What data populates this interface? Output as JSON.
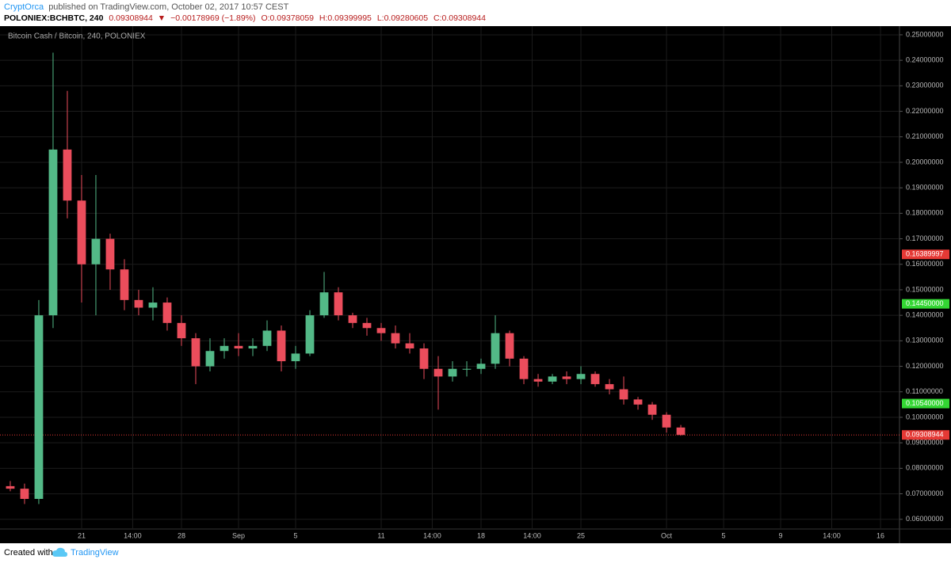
{
  "header": {
    "author": "CryptOrca",
    "published": "published on TradingView.com, October 02, 2017 10:57 CEST",
    "symbol": "POLONIEX:BCHBTC, 240",
    "last": "0.09308944",
    "arrow": "▼",
    "change": "−0.00178969 (−1.89%)",
    "open": "O:0.09378059",
    "high": "H:0.09399995",
    "low": "L:0.09280605",
    "close": "C:0.09308944"
  },
  "footer": {
    "created": "Created with",
    "brand": "TradingView"
  },
  "chart_data": {
    "type": "candlestick",
    "title": "Bitcoin Cash / Bitcoin, 240, POLONIEX",
    "up_color": "#53b987",
    "down_color": "#eb4d5c",
    "grid": true,
    "x": [
      16,
      17,
      18,
      19,
      20,
      21,
      22,
      23,
      24,
      25,
      26,
      27,
      28,
      29,
      30,
      31,
      32,
      33,
      34,
      35,
      36,
      37,
      38,
      39,
      40,
      41,
      42,
      43,
      44,
      45,
      46,
      47,
      48,
      49,
      50,
      51,
      52,
      53,
      54,
      55,
      56,
      57,
      58,
      59,
      60,
      61,
      62,
      63
    ],
    "open": [
      0.073,
      0.072,
      0.068,
      0.14,
      0.205,
      0.185,
      0.16,
      0.17,
      0.158,
      0.146,
      0.143,
      0.145,
      0.137,
      0.131,
      0.12,
      0.126,
      0.128,
      0.127,
      0.128,
      0.134,
      0.122,
      0.125,
      0.14,
      0.149,
      0.14,
      0.137,
      0.135,
      0.133,
      0.129,
      0.127,
      0.119,
      0.116,
      0.119,
      0.119,
      0.121,
      0.133,
      0.123,
      0.115,
      0.114,
      0.116,
      0.115,
      0.117,
      0.113,
      0.111,
      0.107,
      0.105,
      0.101,
      0.096
    ],
    "high": [
      0.075,
      0.074,
      0.146,
      0.243,
      0.228,
      0.195,
      0.195,
      0.172,
      0.162,
      0.15,
      0.151,
      0.147,
      0.14,
      0.133,
      0.131,
      0.131,
      0.133,
      0.131,
      0.138,
      0.136,
      0.128,
      0.142,
      0.157,
      0.151,
      0.141,
      0.139,
      0.137,
      0.136,
      0.133,
      0.129,
      0.124,
      0.122,
      0.122,
      0.123,
      0.14,
      0.134,
      0.124,
      0.117,
      0.117,
      0.118,
      0.12,
      0.118,
      0.115,
      0.116,
      0.108,
      0.106,
      0.102,
      0.097
    ],
    "low": [
      0.071,
      0.066,
      0.066,
      0.135,
      0.178,
      0.145,
      0.14,
      0.15,
      0.142,
      0.14,
      0.138,
      0.134,
      0.128,
      0.113,
      0.118,
      0.123,
      0.124,
      0.124,
      0.126,
      0.118,
      0.119,
      0.124,
      0.139,
      0.138,
      0.135,
      0.132,
      0.13,
      0.127,
      0.125,
      0.115,
      0.103,
      0.114,
      0.116,
      0.117,
      0.119,
      0.12,
      0.113,
      0.112,
      0.113,
      0.113,
      0.113,
      0.112,
      0.109,
      0.105,
      0.103,
      0.099,
      0.094,
      0.0928
    ],
    "close": [
      0.072,
      0.068,
      0.14,
      0.205,
      0.185,
      0.16,
      0.17,
      0.158,
      0.146,
      0.143,
      0.145,
      0.137,
      0.131,
      0.12,
      0.126,
      0.128,
      0.127,
      0.128,
      0.134,
      0.122,
      0.125,
      0.14,
      0.149,
      0.14,
      0.137,
      0.135,
      0.133,
      0.129,
      0.127,
      0.119,
      0.116,
      0.119,
      0.119,
      0.121,
      0.133,
      0.123,
      0.115,
      0.114,
      0.116,
      0.115,
      0.117,
      0.113,
      0.111,
      0.107,
      0.105,
      0.101,
      0.096,
      0.0931
    ],
    "xlim": [
      15.28,
      78.33
    ],
    "xticks": [
      {
        "value": 21,
        "label": "21"
      },
      {
        "value": 24.58,
        "label": "14:00"
      },
      {
        "value": 28,
        "label": "28"
      },
      {
        "value": 32,
        "label": "Sep"
      },
      {
        "value": 36,
        "label": "5"
      },
      {
        "value": 42,
        "label": "11"
      },
      {
        "value": 45.58,
        "label": "14:00"
      },
      {
        "value": 49,
        "label": "18"
      },
      {
        "value": 52.58,
        "label": "14:00"
      },
      {
        "value": 56,
        "label": "25"
      },
      {
        "value": 62,
        "label": "Oct"
      },
      {
        "value": 66,
        "label": "5"
      },
      {
        "value": 70,
        "label": "9"
      },
      {
        "value": 73.58,
        "label": "14:00"
      },
      {
        "value": 77,
        "label": "16"
      }
    ],
    "ylim": [
      0.0562,
      0.2534
    ],
    "yticks": [
      {
        "value": 0.06,
        "label": "0.06000000"
      },
      {
        "value": 0.07,
        "label": "0.07000000"
      },
      {
        "value": 0.08,
        "label": "0.08000000"
      },
      {
        "value": 0.09,
        "label": "0.09000000"
      },
      {
        "value": 0.1,
        "label": "0.10000000"
      },
      {
        "value": 0.11,
        "label": "0.11000000"
      },
      {
        "value": 0.12,
        "label": "0.12000000"
      },
      {
        "value": 0.13,
        "label": "0.13000000"
      },
      {
        "value": 0.14,
        "label": "0.14000000"
      },
      {
        "value": 0.15,
        "label": "0.15000000"
      },
      {
        "value": 0.16,
        "label": "0.16000000"
      },
      {
        "value": 0.17,
        "label": "0.17000000"
      },
      {
        "value": 0.18,
        "label": "0.18000000"
      },
      {
        "value": 0.19,
        "label": "0.19000000"
      },
      {
        "value": 0.2,
        "label": "0.20000000"
      },
      {
        "value": 0.21,
        "label": "0.21000000"
      },
      {
        "value": 0.22,
        "label": "0.22000000"
      },
      {
        "value": 0.23,
        "label": "0.23000000"
      },
      {
        "value": 0.24,
        "label": "0.24000000"
      },
      {
        "value": 0.25,
        "label": "0.25000000"
      }
    ],
    "price_labels": [
      {
        "value": 0.16389997,
        "label": "0.16389997",
        "color": "#e53935"
      },
      {
        "value": 0.1445,
        "label": "0.14450000",
        "color": "#33d633"
      },
      {
        "value": 0.1054,
        "label": "0.10540000",
        "color": "#33d633"
      },
      {
        "value": 0.09308944,
        "label": "0.09308944",
        "color": "#e53935"
      }
    ],
    "last_price": 0.09308944
  }
}
